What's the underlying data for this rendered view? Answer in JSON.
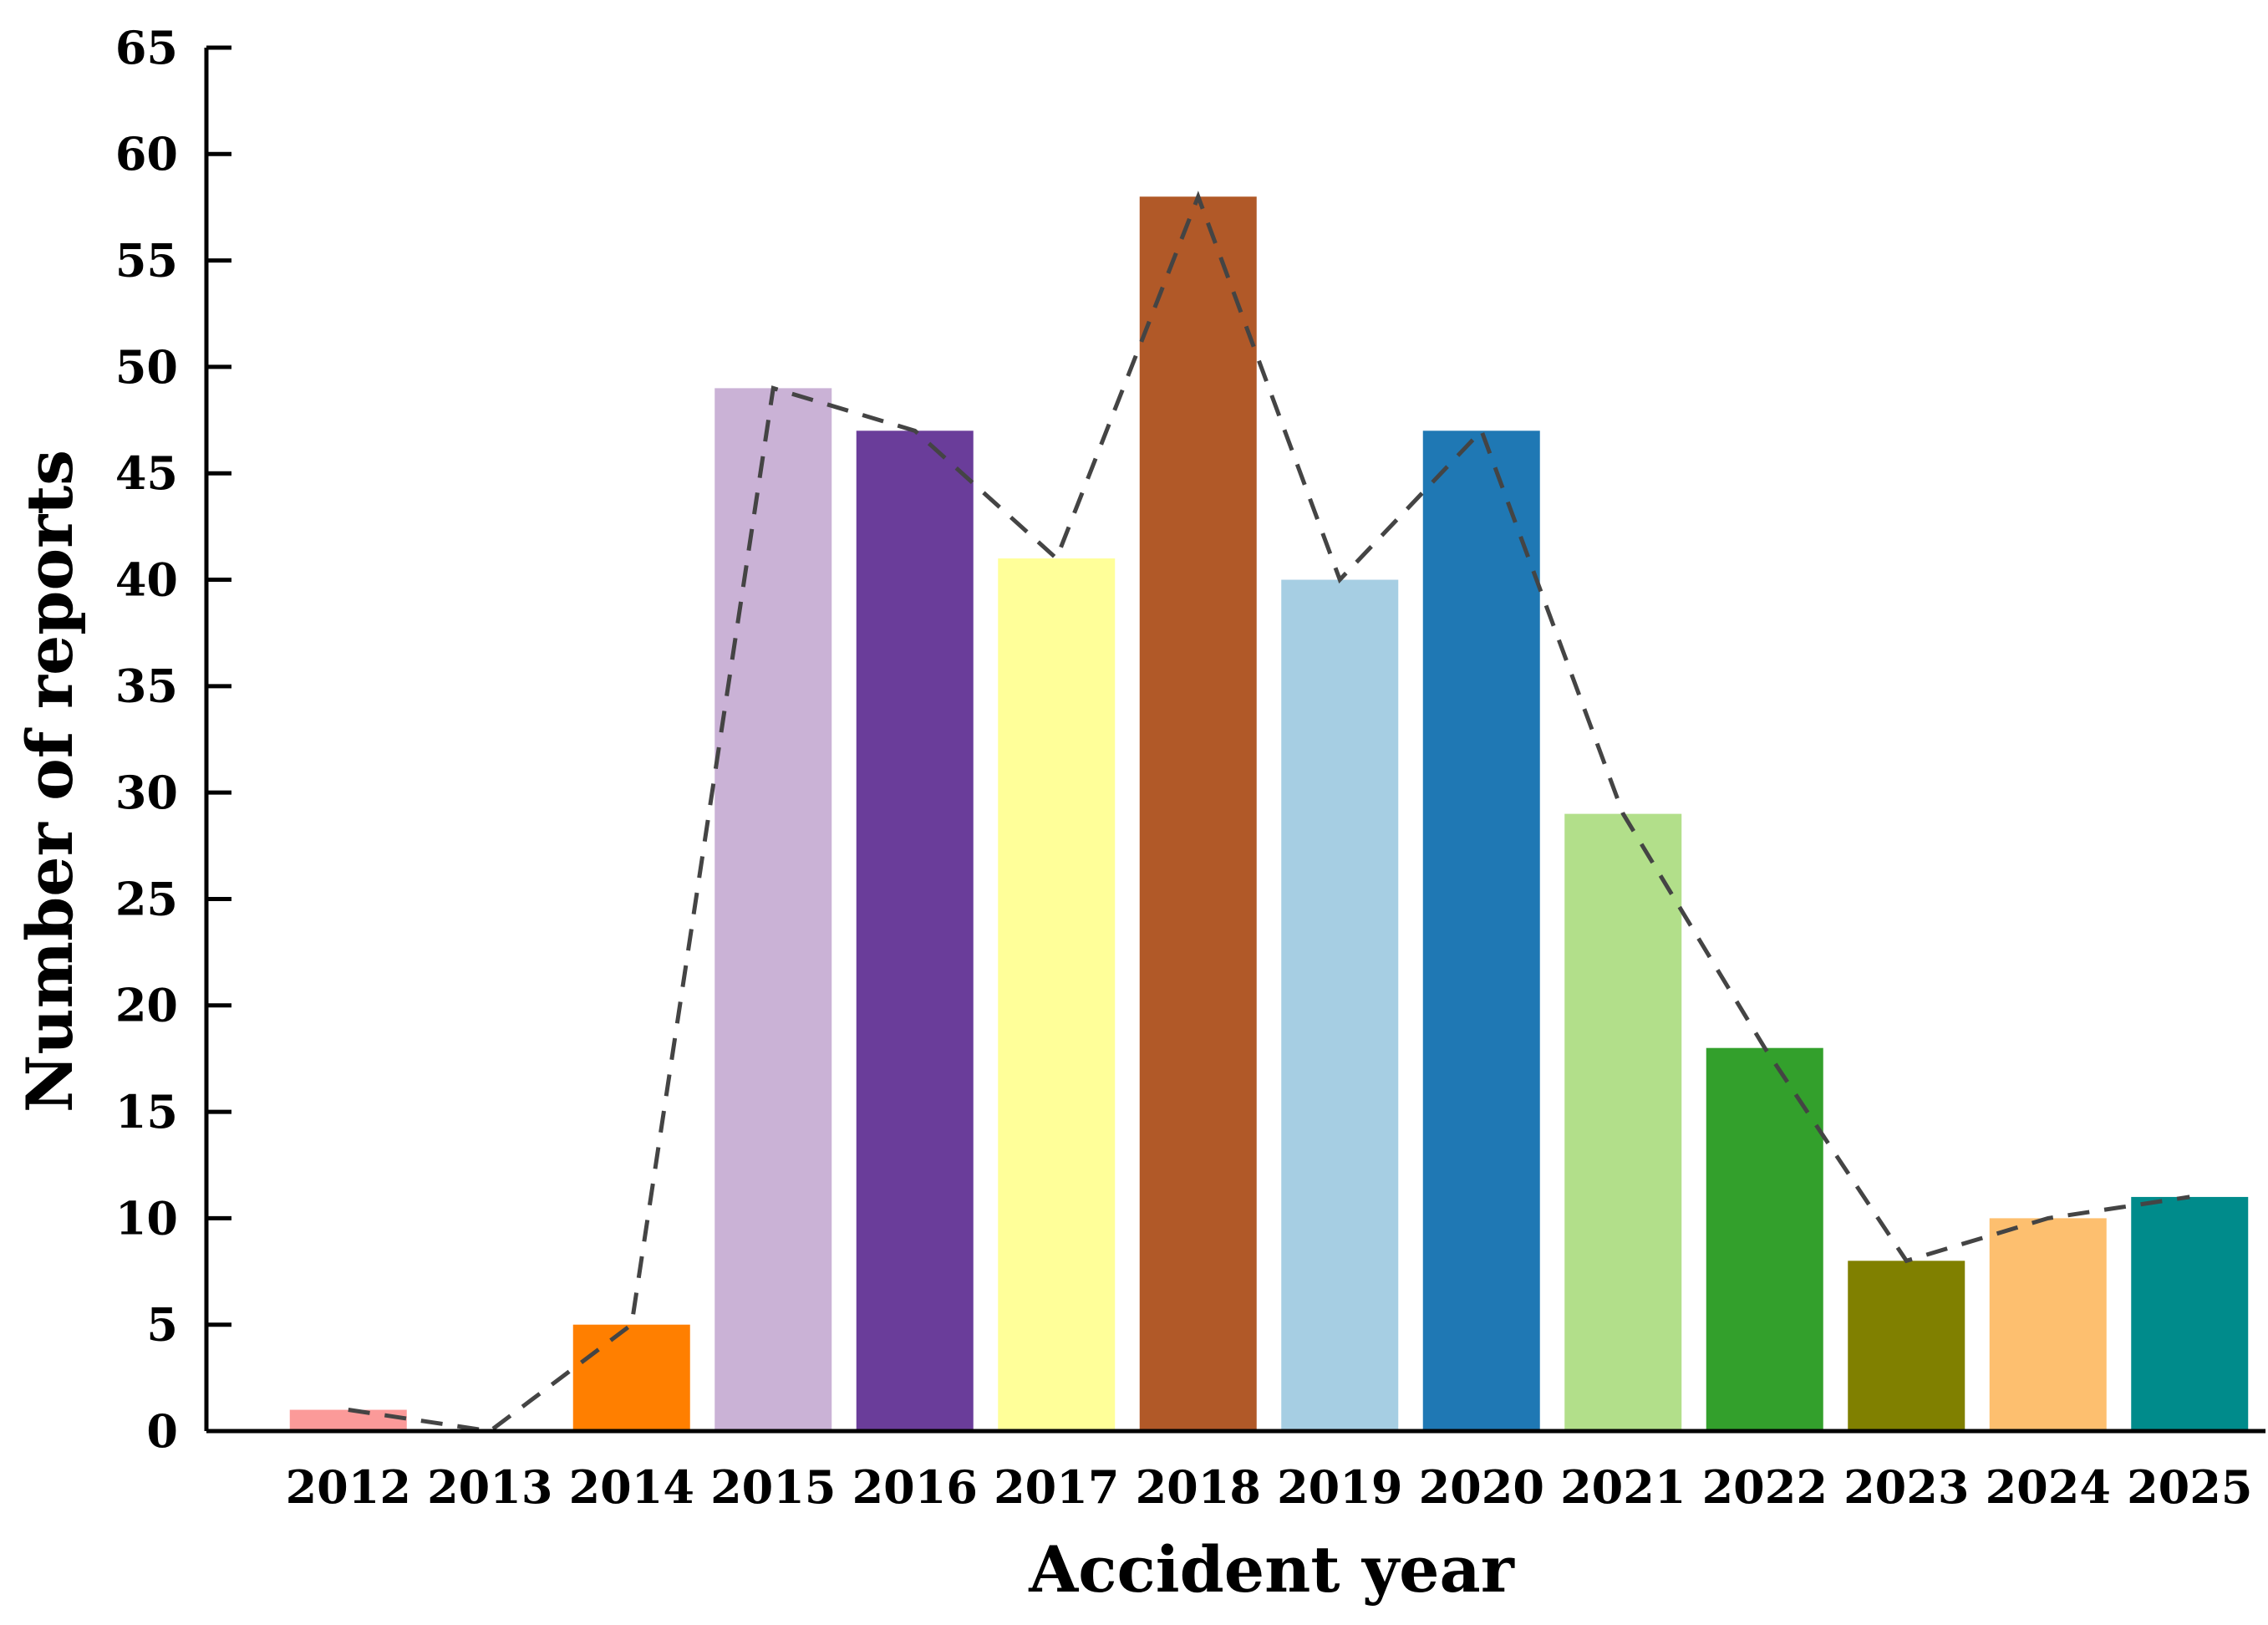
{
  "chart_data": {
    "type": "bar",
    "title": "",
    "xlabel": "Accident year",
    "ylabel": "Number of reports",
    "ylim": [
      0,
      65
    ],
    "yticks": [
      0,
      5,
      10,
      15,
      20,
      25,
      30,
      35,
      40,
      45,
      50,
      55,
      60,
      65
    ],
    "grid": false,
    "legend": "none",
    "trend_line": "dashed line connecting bar tops",
    "categories": [
      "2012",
      "2013",
      "2014",
      "2015",
      "2016",
      "2017",
      "2018",
      "2019",
      "2020",
      "2021",
      "2022",
      "2023",
      "2024",
      "2025"
    ],
    "values": [
      1,
      0,
      5,
      49,
      47,
      41,
      58,
      40,
      47,
      29,
      18,
      8,
      10,
      11
    ],
    "bar_colors": [
      "#FB9A99",
      "#E31A1C",
      "#FF7F00",
      "#CAB2D6",
      "#6A3D9A",
      "#FFFF99",
      "#B15928",
      "#A6CEE3",
      "#1F78B4",
      "#B2DF8A",
      "#33A02C",
      "#808000",
      "#FDBF6F",
      "#008B8B"
    ],
    "line_color": "#444444"
  }
}
